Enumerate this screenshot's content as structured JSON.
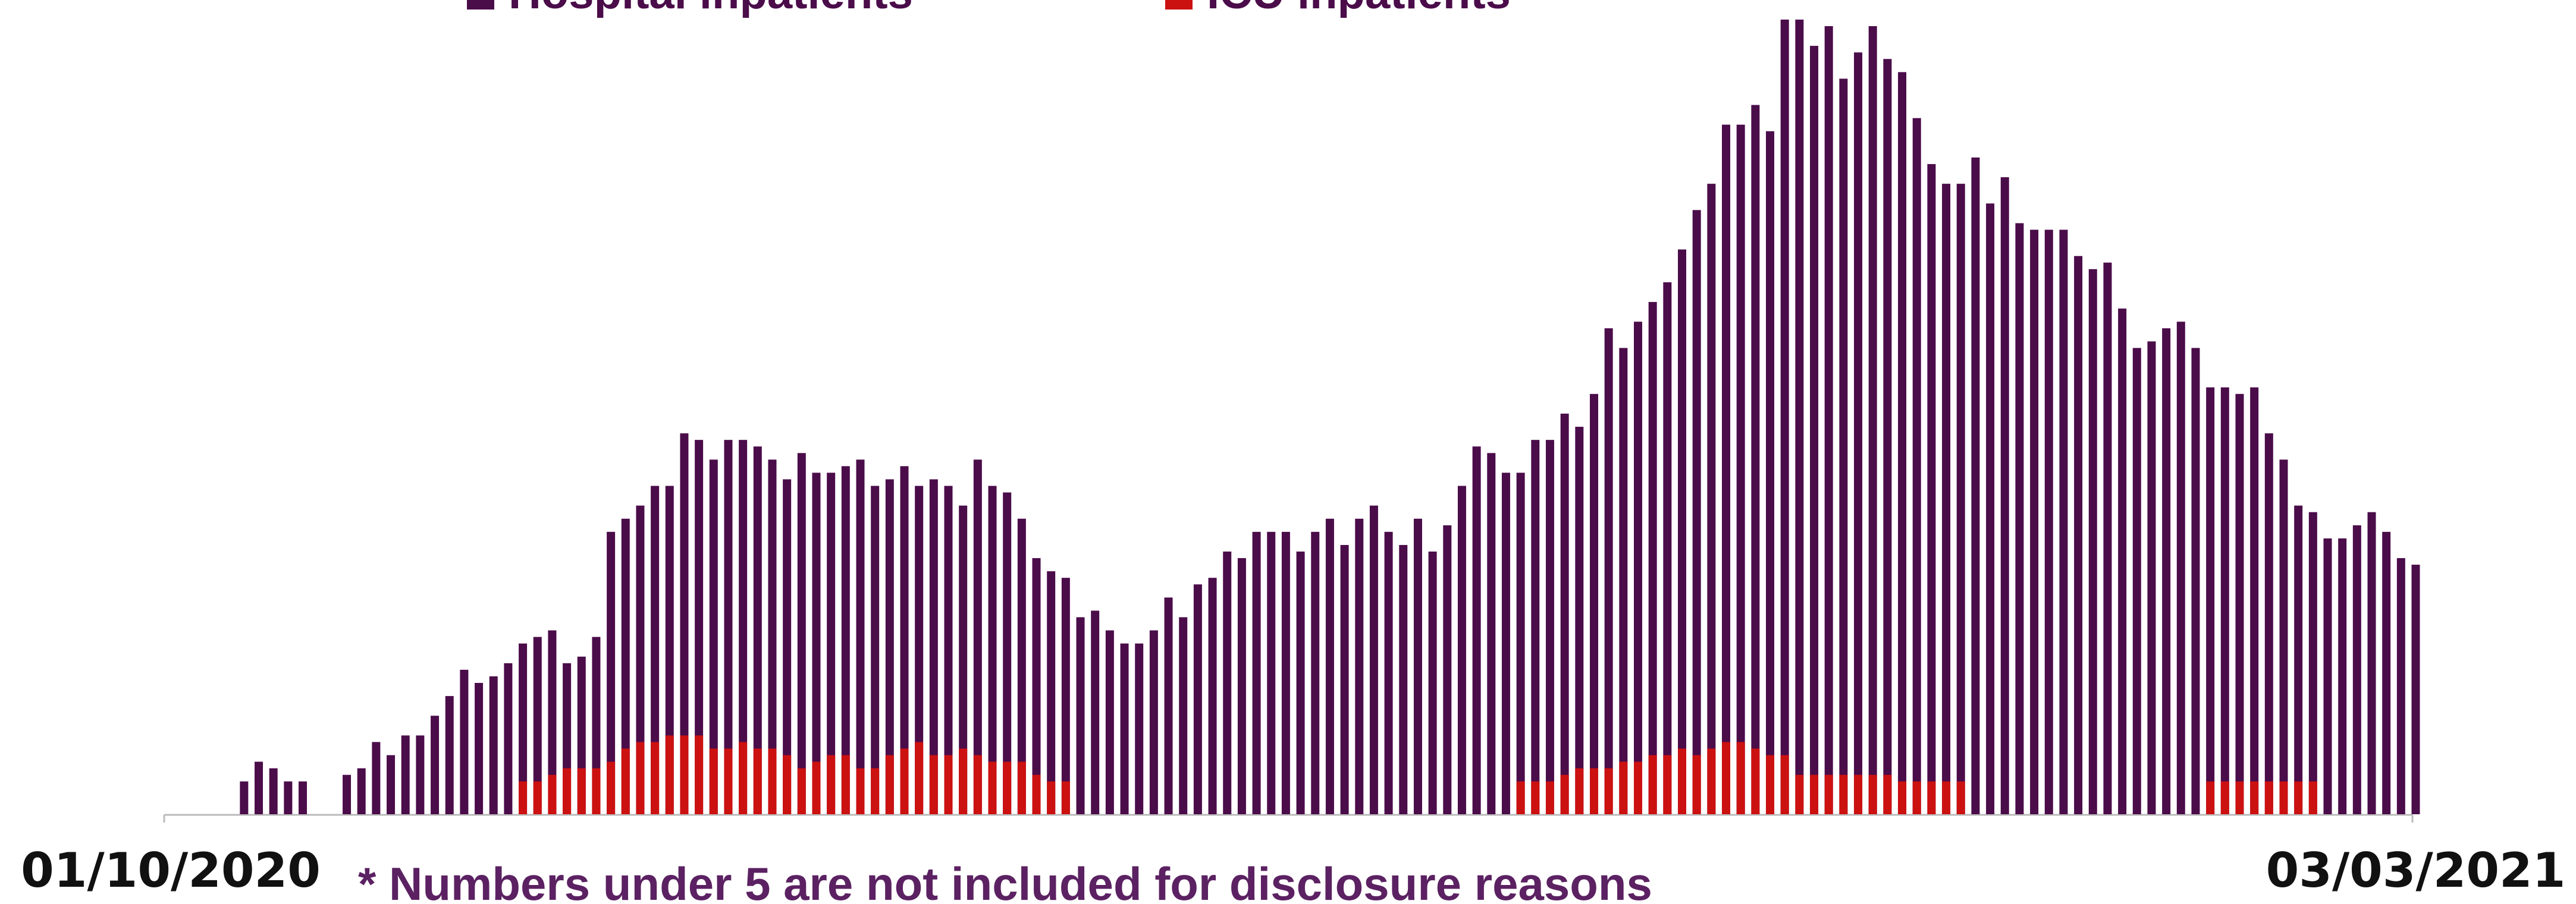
{
  "chart_data": {
    "type": "bar",
    "note": "* Numbers under 5 are not included for disclosure reasons",
    "categories": [
      "01/10/2020",
      null,
      null,
      null,
      null,
      null,
      null,
      null,
      null,
      null,
      null,
      null,
      null,
      null,
      null,
      null,
      null,
      null,
      null,
      null,
      null,
      null,
      null,
      null,
      null,
      null,
      null,
      null,
      null,
      null,
      null,
      null,
      null,
      null,
      null,
      null,
      null,
      null,
      null,
      null,
      null,
      null,
      null,
      null,
      null,
      null,
      null,
      null,
      null,
      null,
      null,
      null,
      null,
      null,
      null,
      null,
      null,
      null,
      null,
      null,
      null,
      null,
      null,
      null,
      null,
      null,
      null,
      null,
      null,
      null,
      null,
      null,
      null,
      null,
      null,
      null,
      null,
      null,
      null,
      null,
      null,
      null,
      null,
      null,
      null,
      null,
      null,
      null,
      null,
      null,
      null,
      null,
      null,
      null,
      null,
      null,
      null,
      null,
      null,
      null,
      null,
      null,
      null,
      null,
      null,
      null,
      null,
      null,
      null,
      null,
      null,
      null,
      null,
      null,
      null,
      null,
      null,
      null,
      null,
      null,
      null,
      null,
      null,
      null,
      null,
      null,
      null,
      null,
      null,
      null,
      null,
      null,
      null,
      null,
      null,
      null,
      null,
      null,
      null,
      null,
      null,
      null,
      null,
      null,
      null,
      null,
      null,
      null,
      null,
      null,
      null,
      null,
      null,
      "03/03/2021"
    ],
    "series": [
      {
        "name": "Hospital inpatients",
        "color": "#4b0c4a",
        "values": [
          null,
          null,
          null,
          null,
          null,
          5,
          8,
          7,
          5,
          5,
          null,
          null,
          6,
          7,
          11,
          9,
          12,
          12,
          15,
          18,
          22,
          20,
          21,
          23,
          26,
          27,
          28,
          23,
          24,
          27,
          43,
          45,
          47,
          50,
          50,
          58,
          57,
          54,
          57,
          57,
          56,
          54,
          51,
          55,
          52,
          52,
          53,
          54,
          50,
          51,
          53,
          50,
          51,
          50,
          47,
          54,
          50,
          49,
          45,
          39,
          37,
          36,
          30,
          31,
          28,
          26,
          26,
          28,
          33,
          30,
          35,
          36,
          40,
          39,
          43,
          43,
          43,
          40,
          43,
          45,
          41,
          45,
          47,
          43,
          41,
          45,
          40,
          44,
          50,
          56,
          55,
          52,
          52,
          57,
          57,
          61,
          59,
          64,
          74,
          71,
          75,
          78,
          81,
          86,
          92,
          96,
          105,
          105,
          108,
          104,
          121,
          121,
          117,
          120,
          112,
          116,
          120,
          115,
          113,
          106,
          99,
          96,
          96,
          100,
          93,
          97,
          90,
          89,
          89,
          89,
          85,
          83,
          84,
          77,
          71,
          72,
          74,
          75,
          71,
          65,
          65,
          64,
          65,
          58,
          54,
          47,
          46,
          42,
          42,
          44,
          46,
          43,
          39,
          38
        ]
      },
      {
        "name": "ICU inpatients",
        "color": "#cc1111",
        "values": [
          null,
          null,
          null,
          null,
          null,
          null,
          null,
          null,
          null,
          null,
          null,
          null,
          null,
          null,
          null,
          null,
          null,
          null,
          null,
          null,
          null,
          null,
          null,
          null,
          5,
          5,
          6,
          7,
          7,
          7,
          8,
          10,
          11,
          11,
          12,
          12,
          12,
          10,
          10,
          11,
          10,
          10,
          9,
          7,
          8,
          9,
          9,
          7,
          7,
          9,
          10,
          11,
          9,
          9,
          10,
          9,
          8,
          8,
          8,
          6,
          5,
          5,
          null,
          null,
          null,
          null,
          null,
          null,
          null,
          null,
          null,
          null,
          null,
          null,
          null,
          null,
          null,
          null,
          null,
          null,
          null,
          null,
          null,
          null,
          null,
          null,
          null,
          null,
          null,
          null,
          null,
          null,
          5,
          5,
          5,
          6,
          7,
          7,
          7,
          8,
          8,
          9,
          9,
          10,
          9,
          10,
          11,
          11,
          10,
          9,
          9,
          6,
          6,
          6,
          6,
          6,
          6,
          6,
          5,
          5,
          5,
          5,
          5,
          null,
          null,
          null,
          null,
          null,
          null,
          null,
          null,
          null,
          null,
          null,
          null,
          null,
          null,
          null,
          null,
          5,
          5,
          5,
          5,
          5,
          5,
          5,
          5,
          null,
          null,
          null,
          null,
          null,
          null,
          null
        ]
      }
    ]
  }
}
